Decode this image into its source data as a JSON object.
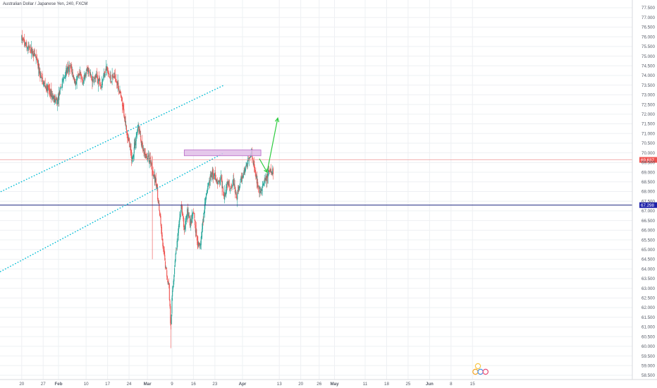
{
  "header": {
    "symbol_title": "Australian Dollar / Japanese Yen, 240, FXCM"
  },
  "colors": {
    "up": "#26a69a",
    "down": "#ef5350",
    "channel": "#00bcd4",
    "arrow": "#2ecc40",
    "zone_fill": "#e1bee7",
    "zone_stroke": "#ba68c8",
    "hline_price": "#ef9a9a",
    "hline_support": "#1a237e",
    "label_price_bg": "#ef5350",
    "label_support_bg": "#1e22aa",
    "grid": "#eef0f3",
    "axis_text": "#555a66"
  },
  "chart_data": {
    "type": "candlestick",
    "title": "Australian Dollar / Japanese Yen, 240, FXCM",
    "ylim": [
      58.0,
      77.9
    ],
    "yticks": [
      "77.500",
      "77.000",
      "76.500",
      "76.000",
      "75.500",
      "75.000",
      "74.500",
      "74.000",
      "73.500",
      "73.000",
      "72.500",
      "72.000",
      "71.500",
      "71.000",
      "70.500",
      "70.000",
      "69.500",
      "69.000",
      "68.500",
      "68.000",
      "67.500",
      "67.000",
      "66.500",
      "66.000",
      "65.500",
      "65.000",
      "64.500",
      "64.000",
      "63.500",
      "63.000",
      "62.500",
      "62.000",
      "61.500",
      "61.000",
      "60.500",
      "60.000",
      "59.500",
      "59.000",
      "58.500"
    ],
    "xticks": [
      {
        "label": "20",
        "day": -12,
        "bold": false
      },
      {
        "label": "27",
        "day": -5,
        "bold": false
      },
      {
        "label": "Feb",
        "day": 0,
        "bold": true
      },
      {
        "label": "10",
        "day": 9,
        "bold": false
      },
      {
        "label": "17",
        "day": 16,
        "bold": false
      },
      {
        "label": "24",
        "day": 23,
        "bold": false
      },
      {
        "label": "Mar",
        "day": 29,
        "bold": true
      },
      {
        "label": "9",
        "day": 37,
        "bold": false
      },
      {
        "label": "16",
        "day": 44,
        "bold": false
      },
      {
        "label": "23",
        "day": 51,
        "bold": false
      },
      {
        "label": "Apr",
        "day": 60,
        "bold": true
      },
      {
        "label": "13",
        "day": 72,
        "bold": false
      },
      {
        "label": "20",
        "day": 79,
        "bold": false
      },
      {
        "label": "26",
        "day": 85,
        "bold": false
      },
      {
        "label": "May",
        "day": 90,
        "bold": true
      },
      {
        "label": "11",
        "day": 100,
        "bold": false
      },
      {
        "label": "18",
        "day": 107,
        "bold": false
      },
      {
        "label": "25",
        "day": 114,
        "bold": false
      },
      {
        "label": "Jun",
        "day": 121,
        "bold": true
      },
      {
        "label": "8",
        "day": 128,
        "bold": false
      },
      {
        "label": "15",
        "day": 135,
        "bold": false
      }
    ],
    "anchors": [
      [
        -12,
        75.9
      ],
      [
        -10.5,
        75.5
      ],
      [
        -9,
        75.3
      ],
      [
        -7.5,
        75.0
      ],
      [
        -6,
        74.0
      ],
      [
        -4.5,
        73.5
      ],
      [
        -3,
        73.2
      ],
      [
        -1.5,
        72.8
      ],
      [
        -0.5,
        72.6
      ],
      [
        1,
        73.5
      ],
      [
        2.5,
        74.2
      ],
      [
        4,
        74.4
      ],
      [
        5.5,
        73.6
      ],
      [
        7,
        74.0
      ],
      [
        8,
        73.7
      ],
      [
        9.5,
        74.3
      ],
      [
        11,
        73.8
      ],
      [
        12.5,
        73.9
      ],
      [
        14,
        73.6
      ],
      [
        15.5,
        74.4
      ],
      [
        17,
        73.8
      ],
      [
        18.5,
        74.0
      ],
      [
        20,
        73.1
      ],
      [
        21,
        72.3
      ],
      [
        22,
        71.5
      ],
      [
        23,
        70.5
      ],
      [
        24,
        69.6
      ],
      [
        25,
        70.6
      ],
      [
        26,
        71.4
      ],
      [
        27,
        70.5
      ],
      [
        27.8,
        69.9
      ],
      [
        30,
        69.6
      ],
      [
        31,
        68.9
      ],
      [
        32,
        68.3
      ],
      [
        33,
        66.8
      ],
      [
        34,
        65.2
      ],
      [
        35,
        64.0
      ],
      [
        36,
        63.1
      ],
      [
        36.6,
        61.0
      ],
      [
        37,
        62.4
      ],
      [
        38,
        64.5
      ],
      [
        39,
        65.8
      ],
      [
        40,
        67.3
      ],
      [
        41,
        66.0
      ],
      [
        42,
        67.0
      ],
      [
        43,
        66.3
      ],
      [
        44,
        66.9
      ],
      [
        45,
        65.6
      ],
      [
        46,
        65.0
      ],
      [
        47,
        66.3
      ],
      [
        48,
        67.8
      ],
      [
        49,
        68.5
      ],
      [
        50,
        68.9
      ],
      [
        51,
        68.8
      ],
      [
        52,
        68.4
      ],
      [
        53,
        68.6
      ],
      [
        54,
        67.8
      ],
      [
        55,
        68.5
      ],
      [
        56,
        68.2
      ],
      [
        57,
        68.6
      ],
      [
        58,
        67.6
      ],
      [
        59,
        68.3
      ],
      [
        60,
        68.8
      ],
      [
        61,
        69.2
      ],
      [
        62,
        69.7
      ],
      [
        63,
        70.0
      ],
      [
        64,
        69.2
      ],
      [
        65,
        68.2
      ],
      [
        66,
        67.9
      ],
      [
        67,
        68.4
      ],
      [
        68,
        68.8
      ],
      [
        69,
        69.0
      ],
      [
        70,
        69.0
      ]
    ],
    "channel_upper": {
      "from": [
        -28,
        67.3
      ],
      "to": [
        54,
        73.5
      ]
    },
    "channel_lower": {
      "from": [
        -28,
        63.1
      ],
      "to": [
        54,
        70.0
      ]
    },
    "resistance_zone": {
      "from_day": 41,
      "to_day": 66,
      "low": 69.85,
      "high": 70.15
    },
    "projection_arrow": {
      "points": [
        [
          65.5,
          69.7
        ],
        [
          68,
          69.0
        ],
        [
          71.5,
          71.8
        ]
      ]
    },
    "horizontal_lines": [
      {
        "price": 69.637,
        "label": "69.637"
      },
      {
        "price": 67.298,
        "label": "67.298"
      }
    ]
  }
}
